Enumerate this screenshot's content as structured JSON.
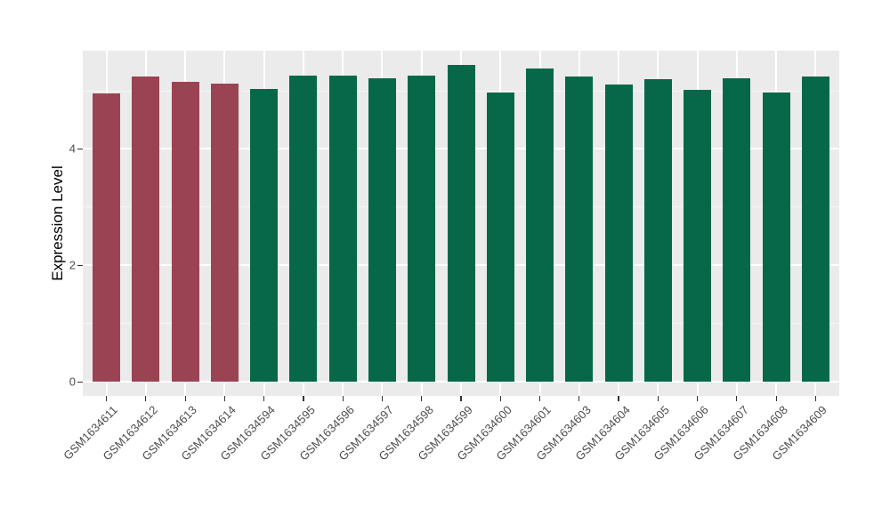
{
  "chart_data": {
    "type": "bar",
    "title": "",
    "xlabel": "",
    "ylabel": "Expression Level",
    "categories": [
      "GSM1634611",
      "GSM1634612",
      "GSM1634613",
      "GSM1634614",
      "GSM1634594",
      "GSM1634595",
      "GSM1634596",
      "GSM1634597",
      "GSM1634598",
      "GSM1634599",
      "GSM1634600",
      "GSM1634601",
      "GSM1634603",
      "GSM1634604",
      "GSM1634605",
      "GSM1634606",
      "GSM1634607",
      "GSM1634608",
      "GSM1634609"
    ],
    "values": [
      4.95,
      5.24,
      5.16,
      5.12,
      5.03,
      5.26,
      5.26,
      5.21,
      5.26,
      5.44,
      4.97,
      5.38,
      5.25,
      5.1,
      5.2,
      5.02,
      5.21,
      4.97,
      5.25
    ],
    "group_index": [
      0,
      0,
      0,
      0,
      1,
      1,
      1,
      1,
      1,
      1,
      1,
      1,
      1,
      1,
      1,
      1,
      1,
      1,
      1
    ],
    "group_colors": [
      "#9A4453",
      "#066849"
    ],
    "yticks": [
      0,
      2,
      4
    ],
    "yticks_minor": [
      1,
      3,
      5
    ],
    "ylim": [
      -0.27,
      5.69
    ],
    "grid": true,
    "legend_position": "none",
    "panel_bg": "#EBEBEB",
    "grid_major_color": "#FFFFFF",
    "grid_minor_color": "#F5F5F5",
    "tick_mark_color": "#333333",
    "tick_label_color": "#4D4D4D",
    "axis_title_color": "#000000"
  }
}
